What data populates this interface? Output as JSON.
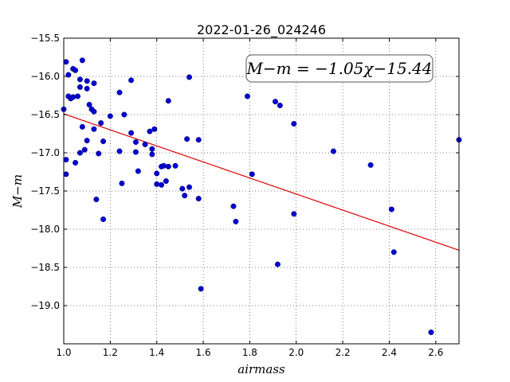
{
  "chart_data": {
    "type": "scatter",
    "title": "2022-01-26_024246",
    "xlabel": "airmass",
    "ylabel": "M−m",
    "xlim": [
      1.0,
      2.7
    ],
    "ylim": [
      -15.5,
      -19.5
    ],
    "y_inverted": true,
    "grid": true,
    "xticks": [
      1.0,
      1.2,
      1.4,
      1.6,
      1.8,
      2.0,
      2.2,
      2.4,
      2.6
    ],
    "xtick_labels": [
      "1.0",
      "1.2",
      "1.4",
      "1.6",
      "1.8",
      "2.0",
      "2.2",
      "2.4",
      "2.6"
    ],
    "yticks": [
      -15.5,
      -16.0,
      -16.5,
      -17.0,
      -17.5,
      -18.0,
      -18.5,
      -19.0
    ],
    "ytick_labels": [
      "−15.5",
      "−16.0",
      "−16.5",
      "−17.0",
      "−17.5",
      "−18.0",
      "−18.5",
      "−19.0"
    ],
    "annotation": "M−m = −1.05χ−15.44",
    "point_color": "#0000cc",
    "fit_color": "#dd0000",
    "fit": {
      "slope": -1.05,
      "intercept": -15.44
    },
    "points": [
      {
        "x": 1.0,
        "y": -16.43
      },
      {
        "x": 1.01,
        "y": -15.81
      },
      {
        "x": 1.01,
        "y": -17.09
      },
      {
        "x": 1.01,
        "y": -17.28
      },
      {
        "x": 1.02,
        "y": -15.98
      },
      {
        "x": 1.02,
        "y": -16.26
      },
      {
        "x": 1.03,
        "y": -16.29
      },
      {
        "x": 1.04,
        "y": -16.27
      },
      {
        "x": 1.04,
        "y": -15.9
      },
      {
        "x": 1.05,
        "y": -15.92
      },
      {
        "x": 1.05,
        "y": -17.13
      },
      {
        "x": 1.06,
        "y": -16.26
      },
      {
        "x": 1.07,
        "y": -16.04
      },
      {
        "x": 1.07,
        "y": -16.14
      },
      {
        "x": 1.07,
        "y": -17.0
      },
      {
        "x": 1.08,
        "y": -16.66
      },
      {
        "x": 1.08,
        "y": -15.79
      },
      {
        "x": 1.09,
        "y": -16.96
      },
      {
        "x": 1.1,
        "y": -16.06
      },
      {
        "x": 1.1,
        "y": -16.16
      },
      {
        "x": 1.1,
        "y": -16.84
      },
      {
        "x": 1.11,
        "y": -16.37
      },
      {
        "x": 1.12,
        "y": -16.43
      },
      {
        "x": 1.13,
        "y": -16.46
      },
      {
        "x": 1.13,
        "y": -16.69
      },
      {
        "x": 1.13,
        "y": -16.09
      },
      {
        "x": 1.14,
        "y": -17.61
      },
      {
        "x": 1.15,
        "y": -17.01
      },
      {
        "x": 1.16,
        "y": -16.61
      },
      {
        "x": 1.17,
        "y": -16.85
      },
      {
        "x": 1.17,
        "y": -17.87
      },
      {
        "x": 1.2,
        "y": -16.52
      },
      {
        "x": 1.24,
        "y": -16.21
      },
      {
        "x": 1.24,
        "y": -16.98
      },
      {
        "x": 1.25,
        "y": -17.4
      },
      {
        "x": 1.26,
        "y": -16.5
      },
      {
        "x": 1.29,
        "y": -16.05
      },
      {
        "x": 1.29,
        "y": -16.74
      },
      {
        "x": 1.31,
        "y": -16.86
      },
      {
        "x": 1.31,
        "y": -16.99
      },
      {
        "x": 1.32,
        "y": -17.24
      },
      {
        "x": 1.35,
        "y": -16.89
      },
      {
        "x": 1.37,
        "y": -16.72
      },
      {
        "x": 1.38,
        "y": -16.95
      },
      {
        "x": 1.38,
        "y": -17.02
      },
      {
        "x": 1.39,
        "y": -16.69
      },
      {
        "x": 1.4,
        "y": -17.27
      },
      {
        "x": 1.4,
        "y": -17.41
      },
      {
        "x": 1.42,
        "y": -17.18
      },
      {
        "x": 1.42,
        "y": -17.42
      },
      {
        "x": 1.43,
        "y": -17.17
      },
      {
        "x": 1.44,
        "y": -17.37
      },
      {
        "x": 1.45,
        "y": -17.18
      },
      {
        "x": 1.45,
        "y": -16.32
      },
      {
        "x": 1.48,
        "y": -17.17
      },
      {
        "x": 1.51,
        "y": -17.47
      },
      {
        "x": 1.52,
        "y": -17.56
      },
      {
        "x": 1.53,
        "y": -16.82
      },
      {
        "x": 1.54,
        "y": -17.45
      },
      {
        "x": 1.54,
        "y": -16.01
      },
      {
        "x": 1.58,
        "y": -16.83
      },
      {
        "x": 1.58,
        "y": -17.6
      },
      {
        "x": 1.59,
        "y": -18.78
      },
      {
        "x": 1.73,
        "y": -17.7
      },
      {
        "x": 1.74,
        "y": -17.9
      },
      {
        "x": 1.79,
        "y": -16.26
      },
      {
        "x": 1.81,
        "y": -17.28
      },
      {
        "x": 1.91,
        "y": -16.33
      },
      {
        "x": 1.92,
        "y": -18.46
      },
      {
        "x": 1.93,
        "y": -16.38
      },
      {
        "x": 1.99,
        "y": -16.62
      },
      {
        "x": 1.99,
        "y": -17.8
      },
      {
        "x": 2.16,
        "y": -16.98
      },
      {
        "x": 2.32,
        "y": -17.16
      },
      {
        "x": 2.41,
        "y": -17.74
      },
      {
        "x": 2.42,
        "y": -18.3
      },
      {
        "x": 2.58,
        "y": -19.35
      },
      {
        "x": 2.7,
        "y": -16.83
      }
    ]
  }
}
